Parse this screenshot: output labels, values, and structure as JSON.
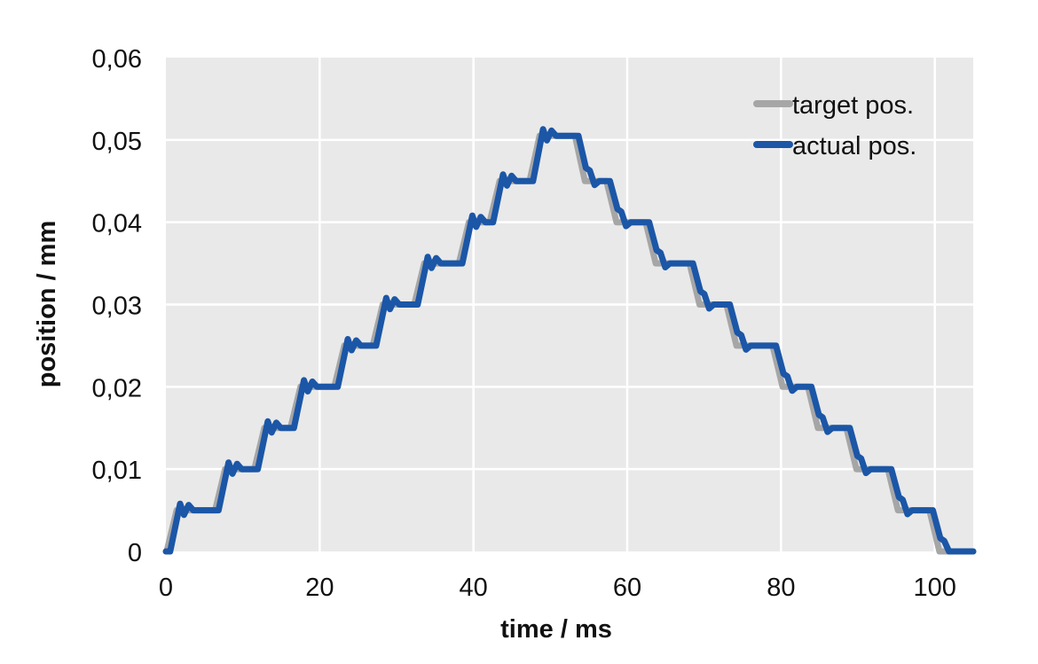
{
  "page": {
    "background_color": "#ffffff"
  },
  "chart_data": {
    "type": "line",
    "title": "",
    "xlabel": "time / ms",
    "ylabel": "position / mm",
    "xlim": [
      0,
      105
    ],
    "ylim": [
      0,
      0.06
    ],
    "x_ticks": [
      0,
      20,
      40,
      60,
      80,
      100
    ],
    "x_tick_labels": [
      "0",
      "20",
      "40",
      "60",
      "80",
      "100"
    ],
    "y_ticks": [
      0,
      0.01,
      0.02,
      0.03,
      0.04,
      0.05,
      0.06
    ],
    "y_tick_labels": [
      "0",
      "0,01",
      "0,02",
      "0,03",
      "0,04",
      "0,05",
      "0,06"
    ],
    "decimal_separator": ",",
    "grid": true,
    "colors": {
      "plot_background": "#e9e9e9",
      "gridline": "#ffffff",
      "text": "#111111",
      "target_line": "#a6a6a6",
      "actual_line": "#1b56a7"
    },
    "legend": {
      "position": "top-right-inside",
      "entries": [
        {
          "label": "target pos.",
          "color": "#a6a6a6"
        },
        {
          "label": "actual pos.",
          "color": "#1b56a7"
        }
      ]
    },
    "step_profile": {
      "description": "Symmetric staircase of 0.005 mm position steps up to a 0.0505 mm peak and back down to 0 over ~105 ms",
      "step_height_mm": 0.005,
      "peak_mm": 0.0505,
      "ramp_duration_ms": 1.3,
      "rise_start_times_ms": [
        0.1,
        6.4,
        11.5,
        16.2,
        21.9,
        26.9,
        32.3,
        38.1,
        42.1,
        47.3
      ],
      "rise_levels_mm": [
        0.005,
        0.01,
        0.015,
        0.02,
        0.025,
        0.03,
        0.035,
        0.04,
        0.045,
        0.0505
      ],
      "fall_start_times_ms": [
        53.2,
        57.3,
        62.4,
        68.1,
        72.9,
        78.9,
        83.5,
        88.5,
        93.9,
        99.3
      ],
      "fall_levels_mm": [
        0.045,
        0.04,
        0.035,
        0.03,
        0.025,
        0.02,
        0.015,
        0.01,
        0.005,
        0
      ],
      "t_end_ms": 105
    },
    "series": [
      {
        "name": "target pos.",
        "color": "#a6a6a6",
        "line_width": 7,
        "role": "target",
        "delay_ms": 0,
        "overshoot_mm": 0
      },
      {
        "name": "actual pos.",
        "color": "#1b56a7",
        "line_width": 7,
        "role": "actual",
        "delay_ms": 0.45,
        "overshoot_mm": 0.0008
      }
    ]
  }
}
